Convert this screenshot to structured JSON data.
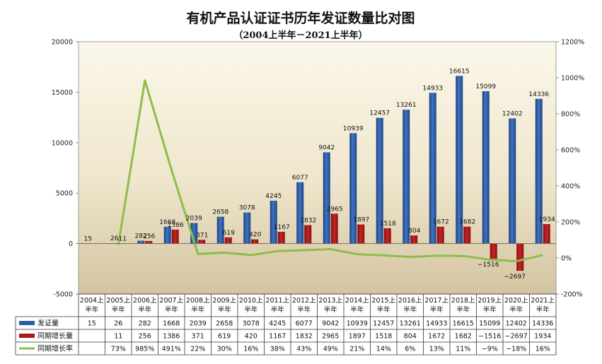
{
  "chart_data": {
    "type": "bar",
    "title": "有机产品认证证书历年发证数量比对图",
    "subtitle": "（2004上半年－2021上半年）",
    "categories": [
      [
        "2004上",
        "半年"
      ],
      [
        "2005上",
        "半年"
      ],
      [
        "2006上",
        "半年"
      ],
      [
        "2007上",
        "半年"
      ],
      [
        "2008上",
        "半年"
      ],
      [
        "2009上",
        "半年"
      ],
      [
        "2010上",
        "半年"
      ],
      [
        "2011上",
        "半年"
      ],
      [
        "2012上",
        "半年"
      ],
      [
        "2013上",
        "半年"
      ],
      [
        "2014上",
        "半年"
      ],
      [
        "2015上",
        "半年"
      ],
      [
        "2016上",
        "半年"
      ],
      [
        "2017上",
        "半年"
      ],
      [
        "2018上",
        "半年"
      ],
      [
        "2019上",
        "半年"
      ],
      [
        "2020上",
        "半年"
      ],
      [
        "2021上",
        "半年"
      ]
    ],
    "series": [
      {
        "name": "发证量",
        "type": "bar",
        "axis": "left",
        "color": "#2e5ca8",
        "values": [
          15,
          26,
          282,
          1668,
          2039,
          2658,
          3078,
          4245,
          6077,
          9042,
          10939,
          12457,
          13261,
          14933,
          16615,
          15099,
          12402,
          14336
        ],
        "labels": [
          "15",
          "26",
          "282",
          "1668",
          "2039",
          "2658",
          "3078",
          "4245",
          "6077",
          "9042",
          "10939",
          "12457",
          "13261",
          "14933",
          "16615",
          "15099",
          "12402",
          "14336"
        ]
      },
      {
        "name": "同期增长量",
        "type": "bar",
        "axis": "left",
        "color": "#b01818",
        "values": [
          null,
          11,
          256,
          1386,
          371,
          619,
          420,
          1167,
          1832,
          2965,
          1897,
          1518,
          804,
          1672,
          1682,
          -1516,
          -2697,
          1934
        ],
        "labels": [
          "",
          "11",
          "256",
          "1386",
          "371",
          "619",
          "420",
          "1167",
          "1832",
          "2965",
          "1897",
          "1518",
          "804",
          "1672",
          "1682",
          "−1516",
          "−2697",
          "1934"
        ]
      },
      {
        "name": "同期增长率",
        "type": "line",
        "axis": "right",
        "color": "#8ebd4a",
        "values": [
          null,
          73,
          985,
          491,
          22,
          30,
          16,
          38,
          43,
          49,
          21,
          14,
          6,
          13,
          11,
          -9,
          -18,
          16
        ],
        "labels": [
          "",
          "73%",
          "985%",
          "491%",
          "22%",
          "30%",
          "16%",
          "38%",
          "43%",
          "49%",
          "21%",
          "14%",
          "6%",
          "13%",
          "11%",
          "−9%",
          "−18%",
          "16%"
        ]
      }
    ],
    "y_left": {
      "min": -5000,
      "max": 20000,
      "ticks": [
        -5000,
        0,
        5000,
        10000,
        15000,
        20000
      ]
    },
    "y_right": {
      "min": -200,
      "max": 1200,
      "ticks": [
        -200,
        0,
        200,
        400,
        600,
        800,
        1000,
        1200
      ],
      "tick_labels": [
        "-200%",
        "0%",
        "200%",
        "400%",
        "600%",
        "800%",
        "1000%",
        "1200%"
      ]
    },
    "grid": false,
    "legend": "data-table-bottom",
    "colors": {
      "plot_bg_top": "#fbf7ea",
      "plot_bg_bottom": "#d4c4a1",
      "bar_blue": "#2e5ca8",
      "bar_red": "#b01818",
      "line_green": "#8ebd4a"
    }
  }
}
